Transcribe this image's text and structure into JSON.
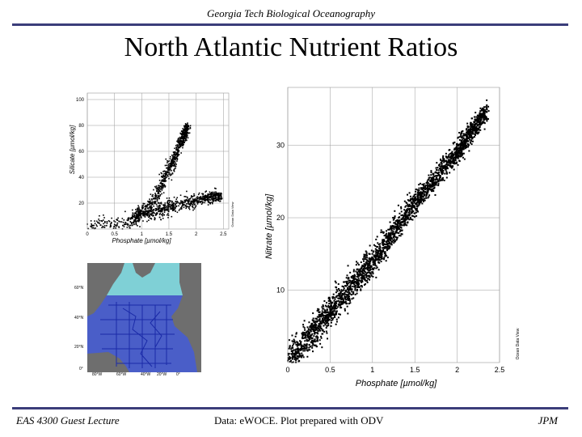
{
  "slide": {
    "header": "Georgia Tech Biological Oceanography",
    "title": "North Atlantic Nutrient Ratios",
    "footer_left": "EAS 4300 Guest Lecture",
    "footer_center": "Data:  eWOCE.  Plot prepared with ODV",
    "footer_right": "JPM"
  },
  "colors": {
    "rule": "#3b3d7a",
    "points": "#000000",
    "grid": "#9a9a9a",
    "ocean_deep": "#4a5ec8",
    "ocean_shelf": "#7fd0d6",
    "land": "#6e6e6e",
    "track": "#1a2aa8"
  },
  "map": {
    "lat_labels": [
      "60°N",
      "40°N",
      "20°N",
      "0°"
    ],
    "lon_labels": [
      "80°W",
      "60°W",
      "40°W",
      "20°W",
      "0°"
    ]
  },
  "chart_data": [
    {
      "type": "scatter",
      "title": "",
      "xlabel": "Phosphate [µmol/kg]",
      "ylabel": "Silicate [µmol/kg]",
      "xlim": [
        0,
        2.6
      ],
      "ylim": [
        0,
        105
      ],
      "xticks": [
        "0",
        "0.5",
        "1",
        "1.5",
        "2",
        "2.5"
      ],
      "yticks": [
        "20",
        "40",
        "60",
        "80",
        "100"
      ],
      "grid": true,
      "credit": "Ocean Data View",
      "trends": [
        {
          "name": "",
          "x": [
            0.0,
            0.8,
            1.2,
            1.5,
            1.7,
            1.85
          ],
          "y": [
            2,
            5,
            20,
            45,
            65,
            80
          ]
        },
        {
          "name": "",
          "x": [
            0.8,
            1.3,
            1.8,
            2.2,
            2.45
          ],
          "y": [
            8,
            14,
            20,
            24,
            26
          ]
        }
      ]
    },
    {
      "type": "scatter",
      "title": "",
      "xlabel": "Phosphate [µmol/kg]",
      "ylabel": "Nitrate [µmol/kg]",
      "xlim": [
        0,
        2.5
      ],
      "ylim": [
        0,
        38
      ],
      "xticks": [
        "0",
        "0.5",
        "1",
        "1.5",
        "2",
        "2.5"
      ],
      "yticks": [
        "10",
        "20",
        "30"
      ],
      "grid": true,
      "credit": "Ocean Data View",
      "trends": [
        {
          "name": "",
          "x": [
            0.0,
            0.5,
            1.0,
            1.5,
            2.0,
            2.35
          ],
          "y": [
            0,
            7,
            14,
            22,
            29,
            35
          ]
        }
      ]
    }
  ]
}
